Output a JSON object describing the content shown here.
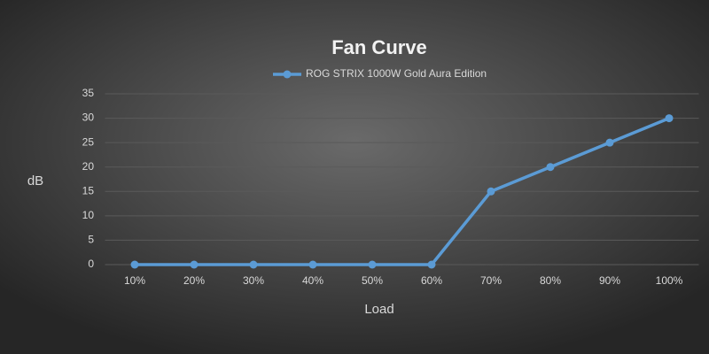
{
  "chart_data": {
    "type": "line",
    "title": "Fan Curve",
    "x_label": "Load",
    "y_label": "dB",
    "categories": [
      "10%",
      "20%",
      "30%",
      "40%",
      "50%",
      "60%",
      "70%",
      "80%",
      "90%",
      "100%"
    ],
    "series": [
      {
        "name": "ROG STRIX 1000W Gold Aura Edition",
        "color": "#5b9bd5",
        "values": [
          0,
          0,
          0,
          0,
          0,
          0,
          15,
          20,
          25,
          30
        ]
      }
    ],
    "ylim": [
      0,
      35
    ],
    "yticks": [
      0,
      5,
      10,
      15,
      20,
      25,
      30,
      35
    ],
    "grid": true,
    "legend": "top"
  }
}
